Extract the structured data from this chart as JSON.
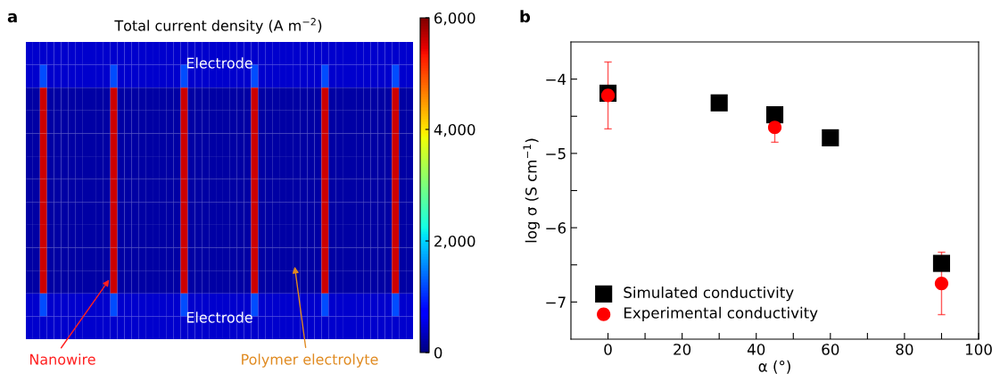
{
  "chart_data": [
    {
      "type": "heatmap",
      "title": "Total current density (A m$^{−2}$)",
      "categories": [
        null,
        null,
        null,
        null,
        null,
        null,
        null,
        null,
        null,
        null,
        null,
        null,
        null,
        null,
        null,
        null,
        null,
        null,
        null,
        null,
        null,
        null,
        null,
        null,
        null,
        null,
        null,
        null,
        null,
        null,
        null,
        null,
        null,
        null,
        null,
        null,
        null,
        null,
        null,
        null,
        null,
        null,
        null,
        null,
        null,
        null,
        null,
        null,
        null,
        null,
        null,
        null,
        null,
        null,
        null
      ],
      "y_categories": [
        null,
        null,
        null,
        null,
        null,
        null,
        null,
        null,
        null,
        null,
        null,
        null,
        null
      ],
      "cells": [
        [
          400,
          400,
          400,
          400,
          400,
          400,
          400,
          400,
          400,
          400,
          400,
          400,
          400,
          400,
          400,
          400,
          400,
          400,
          400,
          400,
          400,
          400,
          400,
          400,
          400,
          400,
          400,
          400,
          400,
          400,
          400,
          400,
          400,
          400,
          400,
          400,
          400,
          400,
          400,
          400,
          400,
          400,
          400,
          400,
          400,
          400,
          400,
          400,
          400,
          400,
          400,
          400,
          400,
          400,
          400
        ],
        [
          400,
          400,
          1200,
          400,
          400,
          400,
          400,
          400,
          400,
          400,
          400,
          400,
          1200,
          400,
          400,
          400,
          400,
          400,
          400,
          400,
          400,
          400,
          1200,
          400,
          400,
          400,
          400,
          400,
          400,
          400,
          400,
          400,
          1200,
          400,
          400,
          400,
          400,
          400,
          400,
          400,
          400,
          400,
          1200,
          400,
          400,
          400,
          400,
          400,
          400,
          400,
          400,
          400,
          1200,
          400,
          400
        ],
        [
          200,
          200,
          5600,
          200,
          200,
          200,
          200,
          200,
          200,
          200,
          200,
          200,
          5600,
          200,
          200,
          200,
          200,
          200,
          200,
          200,
          200,
          200,
          5600,
          200,
          200,
          200,
          200,
          200,
          200,
          200,
          200,
          200,
          5600,
          200,
          200,
          200,
          200,
          200,
          200,
          200,
          200,
          200,
          5600,
          200,
          200,
          200,
          200,
          200,
          200,
          200,
          200,
          200,
          5600,
          200,
          200
        ],
        [
          200,
          200,
          5600,
          200,
          200,
          200,
          200,
          200,
          200,
          200,
          200,
          200,
          5600,
          200,
          200,
          200,
          200,
          200,
          200,
          200,
          200,
          200,
          5600,
          200,
          200,
          200,
          200,
          200,
          200,
          200,
          200,
          200,
          5600,
          200,
          200,
          200,
          200,
          200,
          200,
          200,
          200,
          200,
          5600,
          200,
          200,
          200,
          200,
          200,
          200,
          200,
          200,
          200,
          5600,
          200,
          200
        ],
        [
          200,
          200,
          5600,
          200,
          200,
          200,
          200,
          200,
          200,
          200,
          200,
          200,
          5600,
          200,
          200,
          200,
          200,
          200,
          200,
          200,
          200,
          200,
          5600,
          200,
          200,
          200,
          200,
          200,
          200,
          200,
          200,
          200,
          5600,
          200,
          200,
          200,
          200,
          200,
          200,
          200,
          200,
          200,
          5600,
          200,
          200,
          200,
          200,
          200,
          200,
          200,
          200,
          200,
          5600,
          200,
          200
        ],
        [
          200,
          200,
          5600,
          200,
          200,
          200,
          200,
          200,
          200,
          200,
          200,
          200,
          5600,
          200,
          200,
          200,
          200,
          200,
          200,
          200,
          200,
          200,
          5600,
          200,
          200,
          200,
          200,
          200,
          200,
          200,
          200,
          200,
          5600,
          200,
          200,
          200,
          200,
          200,
          200,
          200,
          200,
          200,
          5600,
          200,
          200,
          200,
          200,
          200,
          200,
          200,
          200,
          200,
          5600,
          200,
          200
        ],
        [
          200,
          200,
          5600,
          200,
          200,
          200,
          200,
          200,
          200,
          200,
          200,
          200,
          5600,
          200,
          200,
          200,
          200,
          200,
          200,
          200,
          200,
          200,
          5600,
          200,
          200,
          200,
          200,
          200,
          200,
          200,
          200,
          200,
          5600,
          200,
          200,
          200,
          200,
          200,
          200,
          200,
          200,
          200,
          5600,
          200,
          200,
          200,
          200,
          200,
          200,
          200,
          200,
          200,
          5600,
          200,
          200
        ],
        [
          200,
          200,
          5600,
          200,
          200,
          200,
          200,
          200,
          200,
          200,
          200,
          200,
          5600,
          200,
          200,
          200,
          200,
          200,
          200,
          200,
          200,
          200,
          5600,
          200,
          200,
          200,
          200,
          200,
          200,
          200,
          200,
          200,
          5600,
          200,
          200,
          200,
          200,
          200,
          200,
          200,
          200,
          200,
          5600,
          200,
          200,
          200,
          200,
          200,
          200,
          200,
          200,
          200,
          5600,
          200,
          200
        ],
        [
          200,
          200,
          5600,
          200,
          200,
          200,
          200,
          200,
          200,
          200,
          200,
          200,
          5600,
          200,
          200,
          200,
          200,
          200,
          200,
          200,
          200,
          200,
          5600,
          200,
          200,
          200,
          200,
          200,
          200,
          200,
          200,
          200,
          5600,
          200,
          200,
          200,
          200,
          200,
          200,
          200,
          200,
          200,
          5600,
          200,
          200,
          200,
          200,
          200,
          200,
          200,
          200,
          200,
          5600,
          200,
          200
        ],
        [
          200,
          200,
          5600,
          200,
          200,
          200,
          200,
          200,
          200,
          200,
          200,
          200,
          5600,
          200,
          200,
          200,
          200,
          200,
          200,
          200,
          200,
          200,
          5600,
          200,
          200,
          200,
          200,
          200,
          200,
          200,
          200,
          200,
          5600,
          200,
          200,
          200,
          200,
          200,
          200,
          200,
          200,
          200,
          5600,
          200,
          200,
          200,
          200,
          200,
          200,
          200,
          200,
          200,
          5600,
          200,
          200
        ],
        [
          200,
          200,
          5600,
          200,
          200,
          200,
          200,
          200,
          200,
          200,
          200,
          200,
          5600,
          200,
          200,
          200,
          200,
          200,
          200,
          200,
          200,
          200,
          5600,
          200,
          200,
          200,
          200,
          200,
          200,
          200,
          200,
          200,
          5600,
          200,
          200,
          200,
          200,
          200,
          200,
          200,
          200,
          200,
          5600,
          200,
          200,
          200,
          200,
          200,
          200,
          200,
          200,
          200,
          5600,
          200,
          200
        ],
        [
          400,
          400,
          1200,
          400,
          400,
          400,
          400,
          400,
          400,
          400,
          400,
          400,
          1200,
          400,
          400,
          400,
          400,
          400,
          400,
          400,
          400,
          400,
          1200,
          400,
          400,
          400,
          400,
          400,
          400,
          400,
          400,
          400,
          1200,
          400,
          400,
          400,
          400,
          400,
          400,
          400,
          400,
          400,
          1200,
          400,
          400,
          400,
          400,
          400,
          400,
          400,
          400,
          400,
          1200,
          400,
          400
        ],
        [
          400,
          400,
          400,
          400,
          400,
          400,
          400,
          400,
          400,
          400,
          400,
          400,
          400,
          400,
          400,
          400,
          400,
          400,
          400,
          400,
          400,
          400,
          400,
          400,
          400,
          400,
          400,
          400,
          400,
          400,
          400,
          400,
          400,
          400,
          400,
          400,
          400,
          400,
          400,
          400,
          400,
          400,
          400,
          400,
          400,
          400,
          400,
          400,
          400,
          400,
          400,
          400,
          400,
          400,
          400
        ]
      ],
      "clim": [
        0,
        6000
      ],
      "cticks": [
        0,
        {
          "value": 2000,
          "label": "2,000"
        },
        {
          "value": 4000,
          "label": "4,000"
        },
        {
          "value": 6000,
          "label": "6,000"
        }
      ],
      "tick_labels": false,
      "annotations": [
        "a",
        "Electrode",
        "Electrode",
        "Nanowire",
        "Polymer electrolyte"
      ]
    },
    {
      "type": "scatter",
      "xlabel": "α (°)",
      "ylabel": "log σ (S cm$^{−1}$)",
      "series": [
        {
          "name": "Simulated conductivity",
          "color": "#000000",
          "marker": "square",
          "x": [
            0,
            30,
            45,
            60,
            90
          ],
          "values": [
            -4.19,
            -4.32,
            -4.48,
            -4.79,
            -6.48
          ]
        },
        {
          "name": "Experimental conductivity",
          "color": "#ff0000",
          "marker": "circle",
          "x": [
            0,
            45,
            90
          ],
          "values": [
            -4.22,
            -4.65,
            -6.75
          ],
          "errors": [
            0.45,
            0.2,
            0.42
          ]
        }
      ],
      "xlim": [
        -10,
        100
      ],
      "xticks": [
        0,
        {
          "value": 10,
          "label": null
        },
        20,
        {
          "value": 30,
          "label": null
        },
        40,
        {
          "value": 50,
          "label": null
        },
        60,
        {
          "value": 70,
          "label": null
        },
        80,
        {
          "value": 90,
          "label": null
        },
        100
      ],
      "ylim": [
        -7.5,
        -3.5
      ],
      "yticks": [
        {
          "value": -7,
          "label": "−7"
        },
        {
          "value": -6.5,
          "label": null
        },
        {
          "value": -6,
          "label": "−6"
        },
        {
          "value": -5.5,
          "label": null
        },
        {
          "value": -5,
          "label": "−5"
        },
        {
          "value": -4.5,
          "label": null
        },
        {
          "value": -4,
          "label": "−4"
        }
      ],
      "grid": false,
      "legend": "bottom left",
      "annotations": [
        "b"
      ]
    }
  ]
}
